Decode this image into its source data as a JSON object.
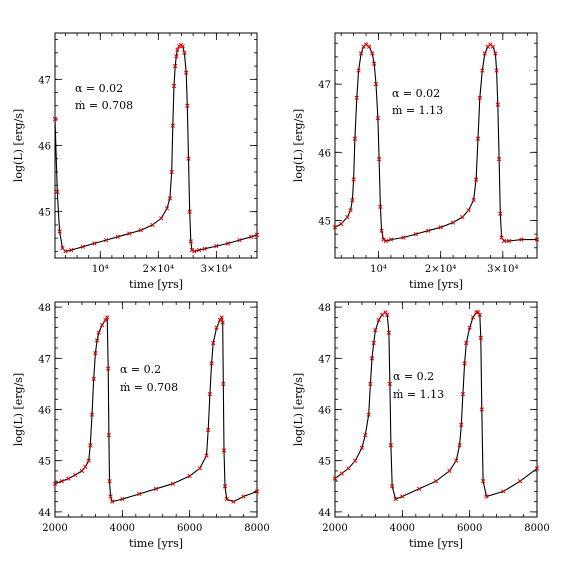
{
  "chart_data": [
    {
      "type": "scatter",
      "xlabel": "time [yrs]",
      "ylabel": "log(L) [erg/s]",
      "xlim": [
        2200,
        37000
      ],
      "ylim": [
        44.3,
        47.7
      ],
      "xticks": [
        {
          "value": 10000,
          "label": "10⁴"
        },
        {
          "value": 20000,
          "label": "2×10⁴"
        },
        {
          "value": 30000,
          "label": "3×10⁴"
        }
      ],
      "yticks": [
        {
          "value": 45,
          "label": "45"
        },
        {
          "value": 46,
          "label": "46"
        },
        {
          "value": 47,
          "label": "47"
        }
      ],
      "annotations": [
        "α = 0.02",
        "ṁ = 0.708"
      ],
      "series": [
        {
          "color": "#e00000",
          "marker": "x",
          "x": [
            2200,
            2600,
            3000,
            3500,
            4000,
            5000,
            7000,
            9000,
            11000,
            13000,
            15000,
            17000,
            19000,
            20500,
            21500,
            22000,
            22300,
            22500,
            22700,
            22900,
            23100,
            23300,
            23600,
            23900,
            24200,
            24500,
            24800,
            25000,
            25200,
            25400,
            25600,
            25800,
            26200,
            27000,
            28000,
            30000,
            32000,
            34000,
            36000,
            37000
          ],
          "y": [
            46.4,
            45.3,
            44.7,
            44.45,
            44.4,
            44.42,
            44.47,
            44.52,
            44.57,
            44.62,
            44.67,
            44.72,
            44.8,
            44.9,
            45.05,
            45.2,
            45.6,
            46.3,
            46.9,
            47.2,
            47.35,
            47.45,
            47.5,
            47.52,
            47.5,
            47.4,
            47.1,
            46.6,
            45.8,
            45.0,
            44.55,
            44.42,
            44.4,
            44.42,
            44.44,
            44.48,
            44.52,
            44.57,
            44.62,
            44.65
          ]
        }
      ]
    },
    {
      "type": "scatter",
      "xlabel": "time [yrs]",
      "ylabel": "log(L) [erg/s]",
      "xlim": [
        3000,
        35500
      ],
      "ylim": [
        44.45,
        47.75
      ],
      "xticks": [
        {
          "value": 10000,
          "label": "10⁴"
        },
        {
          "value": 20000,
          "label": "2×10⁴"
        },
        {
          "value": 30000,
          "label": "3×10⁴"
        }
      ],
      "yticks": [
        {
          "value": 45,
          "label": "45"
        },
        {
          "value": 46,
          "label": "46"
        },
        {
          "value": 47,
          "label": "47"
        }
      ],
      "annotations": [
        "α = 0.02",
        "ṁ = 1.13"
      ],
      "series": [
        {
          "color": "#e00000",
          "marker": "x",
          "x": [
            3000,
            4000,
            5000,
            5500,
            5800,
            6000,
            6200,
            6500,
            6800,
            7200,
            7600,
            8000,
            8500,
            9000,
            9300,
            9600,
            9900,
            10100,
            10300,
            10500,
            10800,
            11200,
            12000,
            14000,
            16000,
            18000,
            20000,
            22000,
            23500,
            24500,
            25300,
            25700,
            26000,
            26300,
            26700,
            27100,
            27600,
            28000,
            28400,
            28800,
            29000,
            29200,
            29400,
            29600,
            29800,
            30200,
            31000,
            33000,
            35500
          ],
          "y": [
            44.9,
            44.95,
            45.05,
            45.15,
            45.3,
            45.6,
            46.2,
            46.8,
            47.2,
            47.45,
            47.55,
            47.58,
            47.55,
            47.45,
            47.3,
            47.0,
            46.5,
            45.9,
            45.2,
            44.85,
            44.72,
            44.7,
            44.72,
            44.75,
            44.8,
            44.85,
            44.9,
            44.97,
            45.05,
            45.15,
            45.3,
            45.6,
            46.2,
            46.8,
            47.2,
            47.45,
            47.55,
            47.58,
            47.55,
            47.45,
            47.2,
            46.7,
            45.9,
            45.1,
            44.75,
            44.7,
            44.7,
            44.72,
            44.72
          ]
        }
      ]
    },
    {
      "type": "scatter",
      "xlabel": "time [yrs]",
      "ylabel": "log(L) [erg/s]",
      "xlim": [
        2000,
        8000
      ],
      "xticks": [
        {
          "value": 2000,
          "label": "2000"
        },
        {
          "value": 4000,
          "label": "4000"
        },
        {
          "value": 6000,
          "label": "6000"
        },
        {
          "value": 8000,
          "label": "8000"
        }
      ],
      "ylim": [
        43.9,
        48.1
      ],
      "yticks": [
        {
          "value": 44,
          "label": "44"
        },
        {
          "value": 45,
          "label": "45"
        },
        {
          "value": 46,
          "label": "46"
        },
        {
          "value": 47,
          "label": "47"
        },
        {
          "value": 48,
          "label": "48"
        }
      ],
      "annotations": [
        "α = 0.2",
        "ṁ = 0.708"
      ],
      "series": [
        {
          "color": "#e00000",
          "marker": "x",
          "x": [
            2000,
            2200,
            2400,
            2600,
            2800,
            2900,
            3000,
            3050,
            3100,
            3150,
            3200,
            3250,
            3300,
            3400,
            3500,
            3550,
            3580,
            3600,
            3620,
            3650,
            3700,
            4000,
            4500,
            5000,
            5500,
            6000,
            6300,
            6500,
            6550,
            6600,
            6650,
            6700,
            6800,
            6900,
            6950,
            6980,
            7000,
            7020,
            7050,
            7100,
            7300,
            7600,
            8000
          ],
          "y": [
            44.55,
            44.6,
            44.65,
            44.72,
            44.8,
            44.88,
            45.0,
            45.3,
            45.9,
            46.6,
            47.1,
            47.35,
            47.5,
            47.65,
            47.75,
            47.8,
            46.8,
            45.5,
            44.6,
            44.3,
            44.2,
            44.25,
            44.35,
            44.45,
            44.55,
            44.7,
            44.85,
            45.1,
            45.6,
            46.3,
            46.9,
            47.3,
            47.6,
            47.75,
            47.8,
            47.7,
            46.5,
            45.2,
            44.5,
            44.25,
            44.2,
            44.3,
            44.4
          ]
        }
      ]
    },
    {
      "type": "scatter",
      "xlabel": "time [yrs]",
      "ylabel": "log(L) [erg/s]",
      "xlim": [
        2000,
        8000
      ],
      "xticks": [
        {
          "value": 2000,
          "label": "2000"
        },
        {
          "value": 4000,
          "label": "4000"
        },
        {
          "value": 6000,
          "label": "6000"
        },
        {
          "value": 8000,
          "label": "8000"
        }
      ],
      "ylim": [
        43.9,
        48.1
      ],
      "yticks": [
        {
          "value": 44,
          "label": "44"
        },
        {
          "value": 45,
          "label": "45"
        },
        {
          "value": 46,
          "label": "46"
        },
        {
          "value": 47,
          "label": "47"
        },
        {
          "value": 48,
          "label": "48"
        }
      ],
      "annotations": [
        "α = 0.2",
        "ṁ = 1.13"
      ],
      "series": [
        {
          "color": "#e00000",
          "marker": "x",
          "x": [
            2000,
            2200,
            2400,
            2600,
            2800,
            2900,
            3000,
            3050,
            3100,
            3150,
            3200,
            3300,
            3400,
            3500,
            3550,
            3600,
            3630,
            3660,
            3700,
            3800,
            4000,
            4500,
            5000,
            5400,
            5600,
            5700,
            5750,
            5800,
            5850,
            5900,
            6000,
            6100,
            6200,
            6250,
            6300,
            6330,
            6360,
            6400,
            6500,
            7000,
            7500,
            8000
          ],
          "y": [
            44.65,
            44.75,
            44.85,
            45.0,
            45.25,
            45.5,
            45.9,
            46.5,
            47.0,
            47.3,
            47.55,
            47.75,
            47.85,
            47.9,
            47.85,
            47.5,
            46.5,
            45.3,
            44.5,
            44.25,
            44.3,
            44.45,
            44.6,
            44.8,
            45.0,
            45.3,
            45.7,
            46.3,
            46.9,
            47.3,
            47.6,
            47.8,
            47.9,
            47.9,
            47.85,
            47.4,
            46.0,
            44.6,
            44.3,
            44.4,
            44.6,
            44.85
          ]
        }
      ]
    }
  ]
}
